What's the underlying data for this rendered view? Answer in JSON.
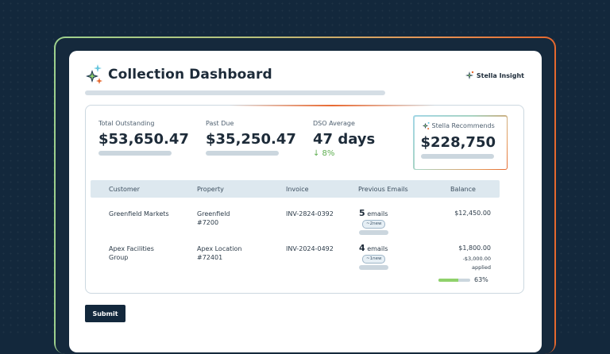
{
  "header": {
    "title": "Collection Dashboard",
    "brand": "Stella Insight"
  },
  "stats": [
    {
      "label": "Total Outstanding",
      "value": "$53,650.47"
    },
    {
      "label": "Past Due",
      "value": "$35,250.47"
    },
    {
      "label": "DSO Average",
      "value": "47 days",
      "delta": "↓ 8%"
    }
  ],
  "recommend": {
    "label": "Stella Recommends",
    "value": "$228,750"
  },
  "table": {
    "columns": [
      "Customer",
      "Property",
      "Invoice",
      "Previous Emails",
      "Balance"
    ],
    "rows": [
      {
        "customer": "Greenfield Markets",
        "property": "Greenfield #7200",
        "invoice": "INV-2824-0392",
        "emails_count": "5",
        "emails_label": "emails",
        "new_badge": "~2new",
        "balance": "$12,450.00"
      },
      {
        "customer": "Apex Facilities Group",
        "property": "Apex Location #72401",
        "invoice": "INV-2024-0492",
        "emails_count": "4",
        "emails_label": "emails",
        "new_badge": "~1new",
        "balance": "$1,800.00",
        "applied_amount": "-$3,000.00",
        "applied_label": "applied",
        "progress_label": "63%",
        "progress": 0.63
      }
    ]
  },
  "actions": {
    "submit_label": "Submit"
  },
  "colors": {
    "accent_orange": "#e5682e",
    "accent_green": "#8fd16b",
    "navy": "#13283c"
  }
}
